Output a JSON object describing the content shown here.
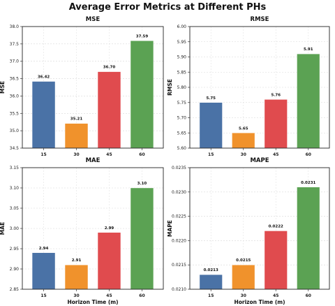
{
  "figure_title": "Average Error Metrics at Different PHs",
  "colors": {
    "15": "#4a72a6",
    "30": "#f0922c",
    "45": "#e04b4e",
    "60": "#5ba253"
  },
  "chart_data": [
    {
      "type": "bar",
      "title": "MSE",
      "xlabel": "",
      "ylabel": "MSE",
      "categories": [
        "15",
        "30",
        "45",
        "60"
      ],
      "values": [
        36.42,
        35.21,
        36.7,
        37.59
      ],
      "value_labels": [
        "36.42",
        "35.21",
        "36.70",
        "37.59"
      ],
      "ylim": [
        34.5,
        38.0
      ],
      "yticks": [
        "34.5",
        "35.0",
        "35.5",
        "36.0",
        "36.5",
        "37.0",
        "37.5",
        "38.0"
      ],
      "grid": true
    },
    {
      "type": "bar",
      "title": "RMSE",
      "xlabel": "",
      "ylabel": "RMSE",
      "categories": [
        "15",
        "30",
        "45",
        "60"
      ],
      "values": [
        5.75,
        5.65,
        5.76,
        5.91
      ],
      "value_labels": [
        "5.75",
        "5.65",
        "5.76",
        "5.91"
      ],
      "ylim": [
        5.6,
        6.0
      ],
      "yticks": [
        "5.60",
        "5.65",
        "5.70",
        "5.75",
        "5.80",
        "5.85",
        "5.90",
        "5.95",
        "6.00"
      ],
      "grid": true
    },
    {
      "type": "bar",
      "title": "MAE",
      "xlabel": "Horizon Time (m)",
      "ylabel": "MAE",
      "categories": [
        "15",
        "30",
        "45",
        "60"
      ],
      "values": [
        2.94,
        2.91,
        2.99,
        3.1
      ],
      "value_labels": [
        "2.94",
        "2.91",
        "2.99",
        "3.10"
      ],
      "ylim": [
        2.85,
        3.15
      ],
      "yticks": [
        "2.85",
        "2.90",
        "2.95",
        "3.00",
        "3.05",
        "3.10",
        "3.15"
      ],
      "grid": true
    },
    {
      "type": "bar",
      "title": "MAPE",
      "xlabel": "Horizon Time (m)",
      "ylabel": "MAPE",
      "categories": [
        "15",
        "30",
        "45",
        "60"
      ],
      "values": [
        0.0213,
        0.0215,
        0.0222,
        0.0231
      ],
      "value_labels": [
        "0.0213",
        "0.0215",
        "0.0222",
        "0.0231"
      ],
      "ylim": [
        0.021,
        0.0235
      ],
      "yticks": [
        "0.0210",
        "0.0215",
        "0.0220",
        "0.0225",
        "0.0230",
        "0.0235"
      ],
      "grid": true
    }
  ]
}
